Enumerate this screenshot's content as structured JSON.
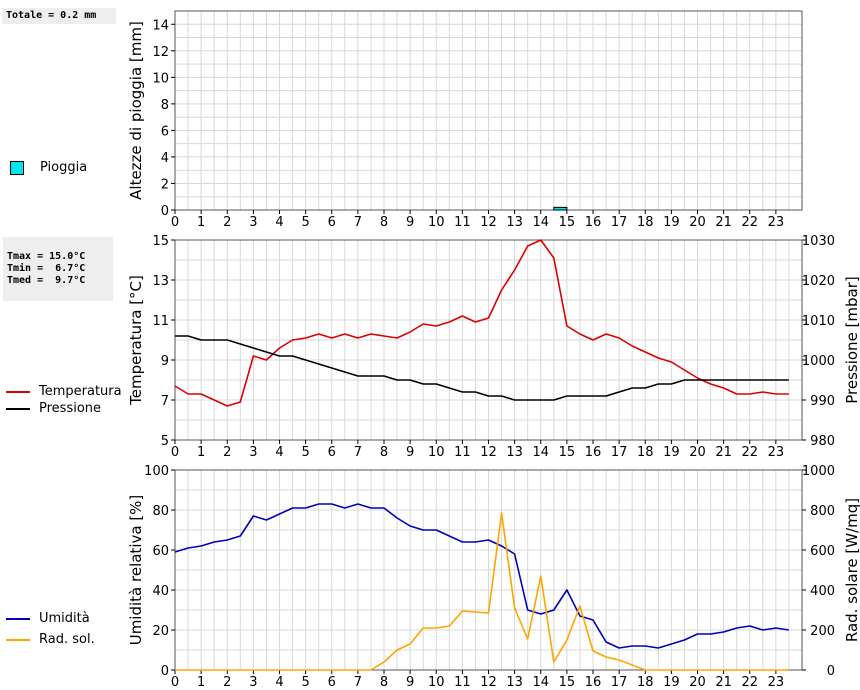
{
  "rain_panel": {
    "total_label": "Totale = 0.2 mm",
    "legend_label": "Pioggia",
    "legend_color": "#00e5ee"
  },
  "temp_panel": {
    "stats": [
      "Tmax = 15.0°C",
      "Tmin =  6.7°C",
      "Tmed =  9.7°C"
    ],
    "legend": [
      {
        "label": "Temperatura",
        "color": "#dd0000"
      },
      {
        "label": "Pressione",
        "color": "#000000"
      }
    ]
  },
  "hum_panel": {
    "legend": [
      {
        "label": "Umidità",
        "color": "#0000bb"
      },
      {
        "label": "Rad. sol.",
        "color": "#ffa500"
      }
    ]
  },
  "chart_data": [
    {
      "type": "bar",
      "ylabel": "Altezze di pioggia [mm]",
      "xlim": [
        0,
        24
      ],
      "ylim": [
        0,
        15
      ],
      "xticks": [
        0,
        1,
        2,
        3,
        4,
        5,
        6,
        7,
        8,
        9,
        10,
        11,
        12,
        13,
        14,
        15,
        16,
        17,
        18,
        19,
        20,
        21,
        22,
        23
      ],
      "yticks": [
        0,
        2,
        4,
        6,
        8,
        10,
        12,
        14
      ],
      "series": [
        {
          "name": "Pioggia",
          "color": "#00e5ee",
          "x": [
            14.5
          ],
          "width": 0.5,
          "values": [
            0.2
          ]
        }
      ]
    },
    {
      "type": "line",
      "ylabel": "Temperatura [°C]",
      "y2label": "Pressione [mbar]",
      "xlim": [
        0,
        24
      ],
      "ylim": [
        5,
        15
      ],
      "y2lim": [
        980,
        1030
      ],
      "xticks": [
        0,
        1,
        2,
        3,
        4,
        5,
        6,
        7,
        8,
        9,
        10,
        11,
        12,
        13,
        14,
        15,
        16,
        17,
        18,
        19,
        20,
        21,
        22,
        23
      ],
      "yticks": [
        5,
        7,
        9,
        11,
        13,
        15
      ],
      "y2ticks": [
        980,
        990,
        1000,
        1010,
        1020,
        1030
      ],
      "series": [
        {
          "name": "Temperatura",
          "color": "#dd0000",
          "axis": "left",
          "x": [
            0,
            0.5,
            1,
            1.5,
            2,
            2.5,
            3,
            3.5,
            4,
            4.5,
            5,
            5.5,
            6,
            6.5,
            7,
            7.5,
            8,
            8.5,
            9,
            9.5,
            10,
            10.5,
            11,
            11.5,
            12,
            12.5,
            13,
            13.5,
            14,
            14.5,
            15,
            15.5,
            16,
            16.5,
            17,
            17.5,
            18,
            18.5,
            19,
            19.5,
            20,
            20.5,
            21,
            21.5,
            22,
            22.5,
            23,
            23.5
          ],
          "values": [
            7.7,
            7.3,
            7.3,
            7.0,
            6.7,
            6.9,
            9.2,
            9.0,
            9.6,
            10.0,
            10.1,
            10.3,
            10.1,
            10.3,
            10.1,
            10.3,
            10.2,
            10.1,
            10.4,
            10.8,
            10.7,
            10.9,
            11.2,
            10.9,
            11.1,
            12.5,
            13.5,
            14.7,
            15.0,
            14.1,
            10.7,
            10.3,
            10.0,
            10.3,
            10.1,
            9.7,
            9.4,
            9.1,
            8.9,
            8.5,
            8.1,
            7.8,
            7.6,
            7.3,
            7.3,
            7.4,
            7.3,
            7.3
          ]
        },
        {
          "name": "Pressione",
          "color": "#000000",
          "axis": "right",
          "x": [
            0,
            0.5,
            1,
            1.5,
            2,
            2.5,
            3,
            3.5,
            4,
            4.5,
            5,
            5.5,
            6,
            6.5,
            7,
            7.5,
            8,
            8.5,
            9,
            9.5,
            10,
            10.5,
            11,
            11.5,
            12,
            12.5,
            13,
            13.5,
            14,
            14.5,
            15,
            15.5,
            16,
            16.5,
            17,
            17.5,
            18,
            18.5,
            19,
            19.5,
            20,
            20.5,
            21,
            21.5,
            22,
            22.5,
            23,
            23.5
          ],
          "values": [
            1006,
            1006,
            1005,
            1005,
            1005,
            1004,
            1003,
            1002,
            1001,
            1001,
            1000,
            999,
            998,
            997,
            996,
            996,
            996,
            995,
            995,
            994,
            994,
            993,
            992,
            992,
            991,
            991,
            990,
            990,
            990,
            990,
            991,
            991,
            991,
            991,
            992,
            993,
            993,
            994,
            994,
            995,
            995,
            995,
            995,
            995,
            995,
            995,
            995,
            995
          ]
        }
      ]
    },
    {
      "type": "line",
      "ylabel": "Umidità relativa [%]",
      "y2label": "Rad. solare [W/mq]",
      "xlim": [
        0,
        24
      ],
      "ylim": [
        0,
        100
      ],
      "y2lim": [
        0,
        1000
      ],
      "xticks": [
        0,
        1,
        2,
        3,
        4,
        5,
        6,
        7,
        8,
        9,
        10,
        11,
        12,
        13,
        14,
        15,
        16,
        17,
        18,
        19,
        20,
        21,
        22,
        23
      ],
      "yticks": [
        0,
        20,
        40,
        60,
        80,
        100
      ],
      "y2ticks": [
        0,
        200,
        400,
        600,
        800,
        1000
      ],
      "series": [
        {
          "name": "Umidità",
          "color": "#0000bb",
          "axis": "left",
          "x": [
            0,
            0.5,
            1,
            1.5,
            2,
            2.5,
            3,
            3.5,
            4,
            4.5,
            5,
            5.5,
            6,
            6.5,
            7,
            7.5,
            8,
            8.5,
            9,
            9.5,
            10,
            10.5,
            11,
            11.5,
            12,
            12.5,
            13,
            13.5,
            14,
            14.5,
            15,
            15.5,
            16,
            16.5,
            17,
            17.5,
            18,
            18.5,
            19,
            19.5,
            20,
            20.5,
            21,
            21.5,
            22,
            22.5,
            23,
            23.5
          ],
          "values": [
            59,
            61,
            62,
            64,
            65,
            67,
            77,
            75,
            78,
            81,
            81,
            83,
            83,
            81,
            83,
            81,
            81,
            76,
            72,
            70,
            70,
            67,
            64,
            64,
            65,
            62,
            58,
            30,
            28,
            30,
            40,
            27,
            25,
            14,
            11,
            12,
            12,
            11,
            13,
            15,
            18,
            18,
            19,
            21,
            22,
            20,
            21,
            20
          ]
        },
        {
          "name": "Rad. sol.",
          "color": "#ffa500",
          "axis": "right",
          "x": [
            0,
            0.5,
            1,
            1.5,
            2,
            2.5,
            3,
            3.5,
            4,
            4.5,
            5,
            5.5,
            6,
            6.5,
            7,
            7.5,
            8,
            8.5,
            9,
            9.5,
            10,
            10.5,
            11,
            11.5,
            12,
            12.5,
            13,
            13.5,
            14,
            14.5,
            15,
            15.5,
            16,
            16.5,
            17,
            17.5,
            18,
            18.5,
            19,
            19.5,
            20,
            20.5,
            21,
            21.5,
            22,
            22.5,
            23,
            23.5
          ],
          "values": [
            0,
            0,
            0,
            0,
            0,
            0,
            0,
            0,
            0,
            0,
            0,
            0,
            0,
            0,
            0,
            0,
            40,
            100,
            130,
            210,
            210,
            220,
            295,
            290,
            285,
            785,
            310,
            155,
            470,
            40,
            150,
            320,
            95,
            65,
            50,
            25,
            0,
            0,
            0,
            0,
            0,
            0,
            0,
            0,
            0,
            0,
            0,
            0
          ]
        }
      ]
    }
  ]
}
